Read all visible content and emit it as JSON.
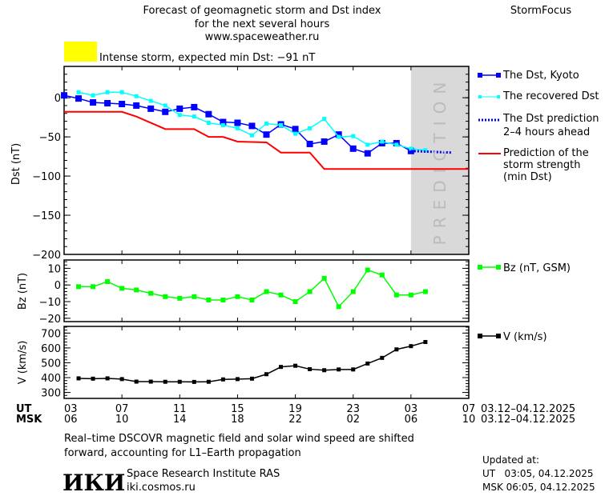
{
  "header": {
    "title_line1": "Forecast of geomagnetic storm and Dst index",
    "title_line2": "for the next several hours",
    "url": "www.spaceweather.ru",
    "brand": "StormFocus",
    "alert_color": "#ffff00",
    "alert_text": "Intense storm, expected min Dst: −91 nT"
  },
  "legend": {
    "kyoto": "The Dst, Kyoto",
    "recovered": "The recovered Dst",
    "prediction_line1": "The Dst prediction",
    "prediction_line2": "2–4 hours ahead",
    "strength_line1": "Prediction of the",
    "strength_line2": "storm strength",
    "strength_line3": "(min Dst)",
    "bz": "Bz (nT, GSM)",
    "v": "V (km/s)"
  },
  "prediction_band_label": "PREDICTION",
  "xaxis": {
    "ut_label": "UT",
    "msk_label": "MSK",
    "ut_ticks": [
      "03",
      "07",
      "11",
      "15",
      "19",
      "23",
      "03",
      "07"
    ],
    "msk_ticks": [
      "06",
      "10",
      "14",
      "18",
      "22",
      "02",
      "06",
      "10"
    ],
    "ut_dates": "03.12–04.12.2025",
    "msk_dates": "03.12–04.12.2025"
  },
  "chart_data": [
    {
      "type": "line",
      "ylabel": "Dst (nT)",
      "ylim": [
        -200,
        40
      ],
      "yticks": [
        "0",
        "−50",
        "−100",
        "−150",
        "−200"
      ],
      "ytick_values": [
        0,
        -50,
        -100,
        -150,
        -200
      ],
      "x_unit": "hours since 03 UT 03.12.2025",
      "prediction_region": [
        24,
        28
      ],
      "series": [
        {
          "name": "The Dst, Kyoto",
          "color": "#0000ff",
          "x": [
            0,
            1,
            2,
            3,
            4,
            5,
            6,
            7,
            8,
            9,
            10,
            11,
            12,
            13,
            14,
            15,
            16,
            17,
            18,
            19,
            20,
            21,
            22,
            23,
            24
          ],
          "y": [
            3,
            -1,
            -6,
            -7,
            -8,
            -10,
            -14,
            -18,
            -14,
            -12,
            -21,
            -31,
            -32,
            -36,
            -47,
            -34,
            -40,
            -59,
            -56,
            -47,
            -65,
            -71,
            -58,
            -58,
            -68
          ]
        },
        {
          "name": "The recovered Dst",
          "color": "#00ffff",
          "x": [
            1,
            2,
            3,
            4,
            5,
            6,
            7,
            8,
            9,
            10,
            11,
            12,
            13,
            14,
            15,
            16,
            17,
            18,
            19,
            20,
            21,
            22,
            23,
            24,
            25
          ],
          "y": [
            7,
            3,
            7,
            7,
            2,
            -4,
            -10,
            -22,
            -24,
            -32,
            -35,
            -39,
            -48,
            -33,
            -35,
            -46,
            -39,
            -27,
            -50,
            -49,
            -60,
            -56,
            -60,
            -65,
            -67
          ]
        },
        {
          "name": "The Dst prediction 2–4 hours ahead",
          "color": "#0000ff",
          "style": "dotted",
          "x": [
            24,
            26.8
          ],
          "y": [
            -68,
            -70
          ]
        },
        {
          "name": "Prediction of the storm strength (min Dst)",
          "color": "#ff0000",
          "style": "step",
          "x": [
            0,
            4,
            5,
            7,
            9,
            10,
            11,
            12,
            14,
            15,
            17,
            18,
            28
          ],
          "y": [
            -18,
            -18,
            -24,
            -40,
            -40,
            -50,
            -50,
            -56,
            -57,
            -70,
            -70,
            -91,
            -91
          ]
        }
      ]
    },
    {
      "type": "line",
      "ylabel": "Bz (nT)",
      "ylim": [
        -22,
        15
      ],
      "yticks": [
        "10",
        "0",
        "−10",
        "−20"
      ],
      "ytick_values": [
        10,
        0,
        -10,
        -20
      ],
      "series": [
        {
          "name": "Bz (nT, GSM)",
          "color": "#00ff00",
          "x": [
            1,
            2,
            3,
            4,
            5,
            6,
            7,
            8,
            9,
            10,
            11,
            12,
            13,
            14,
            15,
            16,
            17,
            18,
            19,
            20,
            21,
            22,
            23,
            24,
            25
          ],
          "y": [
            -1,
            -1,
            2,
            -2,
            -3,
            -5,
            -7,
            -8,
            -7,
            -9,
            -9,
            -7,
            -9,
            -4,
            -6,
            -10,
            -4,
            4,
            -13,
            -4,
            9,
            6,
            -6,
            -6,
            -4
          ]
        }
      ]
    },
    {
      "type": "line",
      "ylabel": "V (km/s)",
      "ylim": [
        260,
        745
      ],
      "yticks": [
        "700",
        "600",
        "500",
        "400",
        "300"
      ],
      "ytick_values": [
        700,
        600,
        500,
        400,
        300
      ],
      "series": [
        {
          "name": "V (km/s)",
          "color": "#000000",
          "x": [
            1,
            2,
            3,
            4,
            5,
            6,
            7,
            8,
            9,
            10,
            11,
            12,
            13,
            14,
            15,
            16,
            17,
            18,
            19,
            20,
            21,
            22,
            23,
            24,
            25
          ],
          "y": [
            395,
            393,
            395,
            390,
            373,
            373,
            372,
            372,
            371,
            372,
            388,
            390,
            393,
            423,
            472,
            480,
            457,
            450,
            455,
            455,
            495,
            533,
            590,
            612,
            640
          ]
        }
      ]
    }
  ],
  "footer": {
    "note_line1": "Real–time DSCOVR magnetic field and solar wind speed are shifted",
    "note_line2": "forward, accounting for L1–Earth propagation",
    "logo_text": "ИКИ",
    "institute": "Space Research Institute RAS",
    "institute_url": "iki.cosmos.ru",
    "updated_label": "Updated at:",
    "updated_ut": "UT   03:05, 04.12.2025",
    "updated_msk": "MSK 06:05, 04.12.2025"
  }
}
